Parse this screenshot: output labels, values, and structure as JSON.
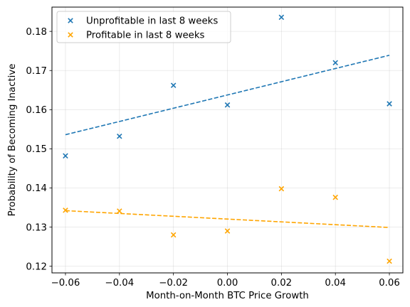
{
  "chart_data": {
    "type": "scatter",
    "xlabel": "Month-on-Month BTC Price Growth",
    "ylabel": "Probability of Becoming Inactive",
    "xlim": [
      -0.065,
      0.065
    ],
    "ylim": [
      0.1183,
      0.1862
    ],
    "xticks": [
      -0.06,
      -0.04,
      -0.02,
      0.0,
      0.02,
      0.04,
      0.06
    ],
    "xtick_labels": [
      "−0.06",
      "−0.04",
      "−0.02",
      "0.00",
      "0.02",
      "0.04",
      "0.06"
    ],
    "yticks": [
      0.12,
      0.13,
      0.14,
      0.15,
      0.16,
      0.17,
      0.18
    ],
    "ytick_labels": [
      "0.12",
      "0.13",
      "0.14",
      "0.15",
      "0.16",
      "0.17",
      "0.18"
    ],
    "grid": true,
    "legend_position": "top-left",
    "series": [
      {
        "name": "Unprofitable in last 8 weeks",
        "color": "#1f77b4",
        "marker": "x",
        "x": [
          -0.06,
          -0.04,
          -0.02,
          0.0,
          0.02,
          0.04,
          0.06
        ],
        "y": [
          0.1482,
          0.1532,
          0.1662,
          0.1612,
          0.1836,
          0.172,
          0.1615
        ],
        "trend": {
          "x": [
            -0.06,
            0.06
          ],
          "y": [
            0.1536,
            0.1739
          ],
          "style": "dashed"
        }
      },
      {
        "name": "Profitable in last 8 weeks",
        "color": "#ffa500",
        "marker": "x",
        "x": [
          -0.06,
          -0.04,
          -0.02,
          0.0,
          0.02,
          0.04,
          0.06
        ],
        "y": [
          0.1343,
          0.1341,
          0.128,
          0.129,
          0.1398,
          0.1376,
          0.1213
        ],
        "trend": {
          "x": [
            -0.06,
            0.06
          ],
          "y": [
            0.1342,
            0.1299
          ],
          "style": "dashed"
        }
      }
    ]
  }
}
